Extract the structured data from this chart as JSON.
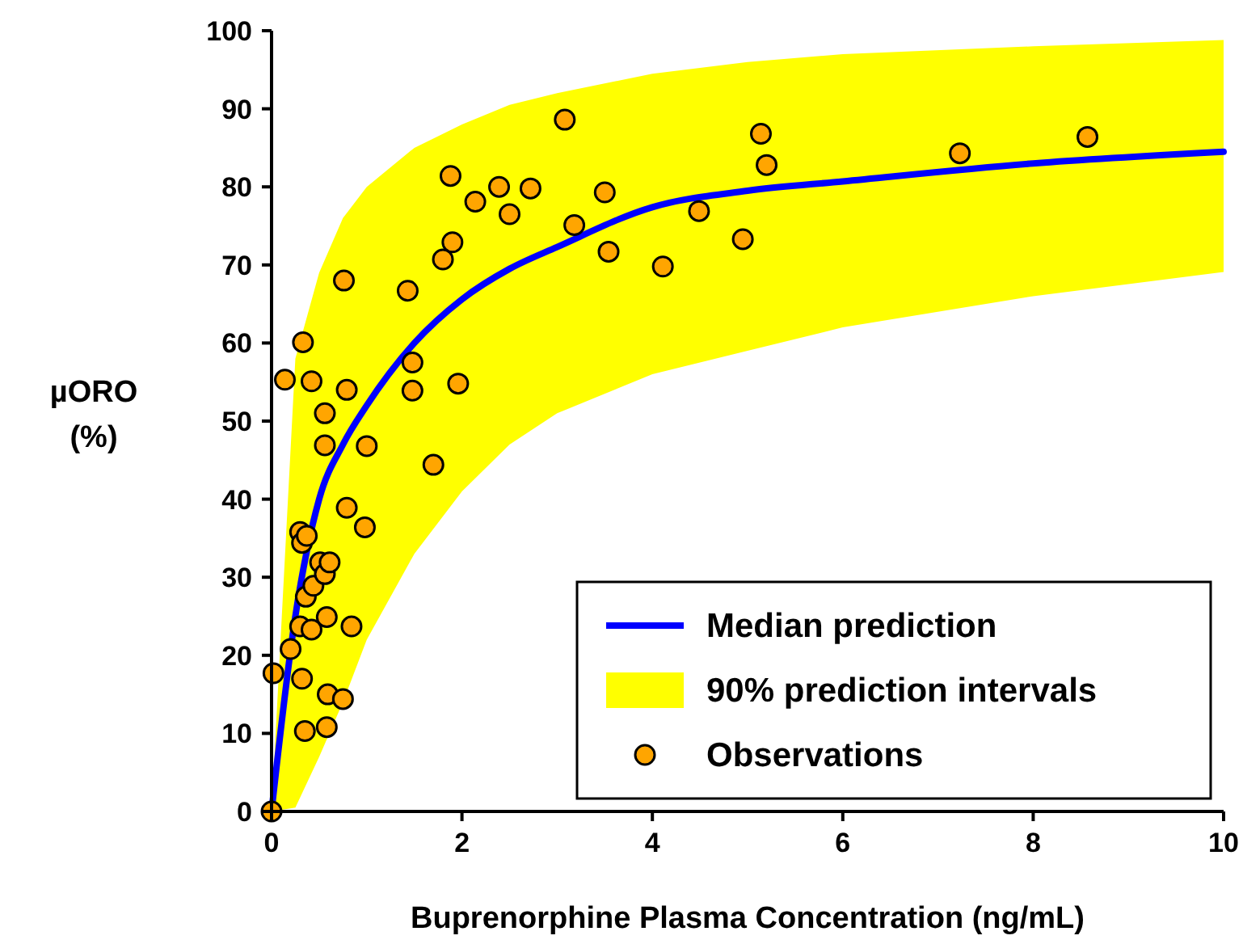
{
  "chart_data": {
    "type": "scatter",
    "xlabel": "Buprenorphine Plasma Concentration (ng/mL)",
    "ylabel": "µORO\n(%)",
    "xlim": [
      0,
      10
    ],
    "xticks": [
      0,
      2,
      4,
      6,
      8,
      10
    ],
    "ylim": [
      0,
      100
    ],
    "yticks": [
      0,
      10,
      20,
      30,
      40,
      50,
      60,
      70,
      80,
      90,
      100
    ],
    "grid": false,
    "legend": "bottom right",
    "series": [
      {
        "type": "line",
        "name": "Median prediction",
        "color": "#0000ff",
        "line_style": "solid",
        "marker": "none",
        "x": [
          0,
          0.25,
          0.5,
          0.75,
          1,
          1.5,
          2,
          2.5,
          3,
          4,
          5,
          6,
          8,
          10
        ],
        "values": [
          0,
          25,
          40,
          47,
          52,
          60,
          65.6,
          69.5,
          72.3,
          77.4,
          79.5,
          80.7,
          83,
          84.5
        ],
        "lower": [
          0,
          0.5,
          7,
          14,
          22,
          33,
          41,
          47,
          51,
          56,
          59,
          62,
          66,
          69.1
        ],
        "upper": [
          0,
          58,
          69,
          76,
          80,
          85,
          88,
          90.5,
          92,
          94.5,
          96,
          97,
          98,
          98.8
        ]
      },
      {
        "type": "area",
        "name": "90% prediction intervals",
        "color": "#ffff00"
      },
      {
        "name": "Observations",
        "color": "#ffa500",
        "marker": "circle",
        "x": [
          0,
          0.02,
          0.14,
          0.2,
          0.3,
          0.3,
          0.32,
          0.32,
          0.33,
          0.35,
          0.36,
          0.37,
          0.42,
          0.42,
          0.44,
          0.51,
          0.56,
          0.56,
          0.56,
          0.58,
          0.58,
          0.59,
          0.61,
          0.75,
          0.76,
          0.79,
          0.79,
          0.84,
          0.98,
          1.0,
          1.43,
          1.48,
          1.48,
          1.7,
          1.8,
          1.88,
          1.9,
          1.96,
          2.14,
          2.39,
          2.5,
          2.72,
          3.08,
          3.18,
          3.5,
          3.54,
          4.11,
          4.49,
          4.95,
          5.14,
          5.2,
          7.23,
          8.57
        ],
        "values": [
          0,
          17.7,
          55.3,
          20.8,
          35.8,
          23.7,
          34.4,
          17.0,
          60.1,
          10.3,
          27.5,
          35.3,
          55.1,
          23.3,
          28.9,
          31.9,
          51,
          46.9,
          30.4,
          24.9,
          10.8,
          15.0,
          31.9,
          14.4,
          68,
          54,
          38.9,
          23.7,
          36.4,
          46.8,
          66.7,
          57.5,
          53.9,
          44.4,
          70.7,
          81.4,
          72.9,
          54.8,
          78.1,
          80.0,
          76.5,
          79.8,
          88.6,
          75.1,
          79.3,
          71.7,
          69.8,
          76.9,
          73.3,
          86.8,
          82.8,
          84.3,
          86.4
        ]
      }
    ]
  }
}
